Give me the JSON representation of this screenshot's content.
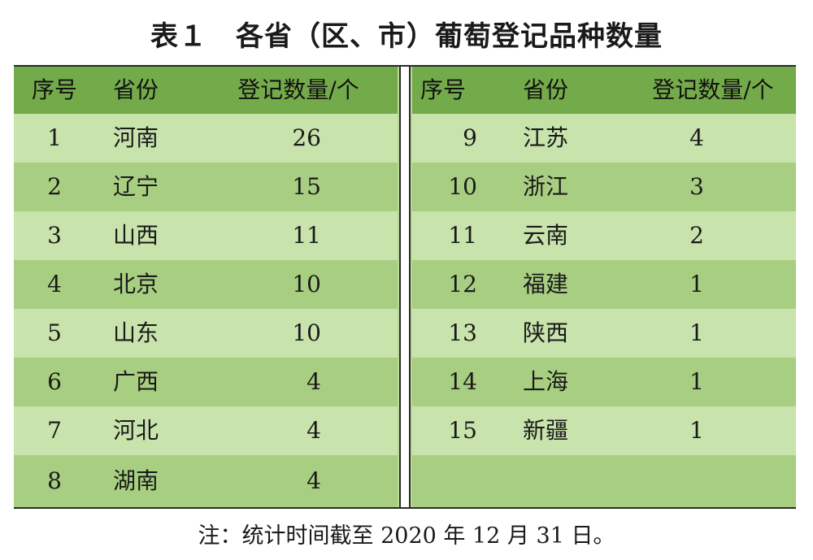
{
  "title": "表１　各省（区、市）葡萄登记品种数量",
  "headers": {
    "seq": "序号",
    "province": "省份",
    "count": "登记数量/个"
  },
  "left_rows": [
    {
      "seq": "1",
      "province": "河南",
      "count": "26"
    },
    {
      "seq": "2",
      "province": "辽宁",
      "count": "15"
    },
    {
      "seq": "3",
      "province": "山西",
      "count": "11"
    },
    {
      "seq": "4",
      "province": "北京",
      "count": "10"
    },
    {
      "seq": "5",
      "province": "山东",
      "count": "10"
    },
    {
      "seq": "6",
      "province": "广西",
      "count": "4"
    },
    {
      "seq": "7",
      "province": "河北",
      "count": "4"
    },
    {
      "seq": "8",
      "province": "湖南",
      "count": "4"
    }
  ],
  "right_rows": [
    {
      "seq": "9",
      "province": "江苏",
      "count": "4"
    },
    {
      "seq": "10",
      "province": "浙江",
      "count": "3"
    },
    {
      "seq": "11",
      "province": "云南",
      "count": "2"
    },
    {
      "seq": "12",
      "province": "福建",
      "count": "1"
    },
    {
      "seq": "13",
      "province": "陕西",
      "count": "1"
    },
    {
      "seq": "14",
      "province": "上海",
      "count": "1"
    },
    {
      "seq": "15",
      "province": "新疆",
      "count": "1"
    }
  ],
  "note": "注：统计时间截至 2020 年 12 月 31 日。",
  "colors": {
    "header_bg": "#74ab4a",
    "row_light": "#c8e3ac",
    "row_dark": "#a8cf81"
  }
}
